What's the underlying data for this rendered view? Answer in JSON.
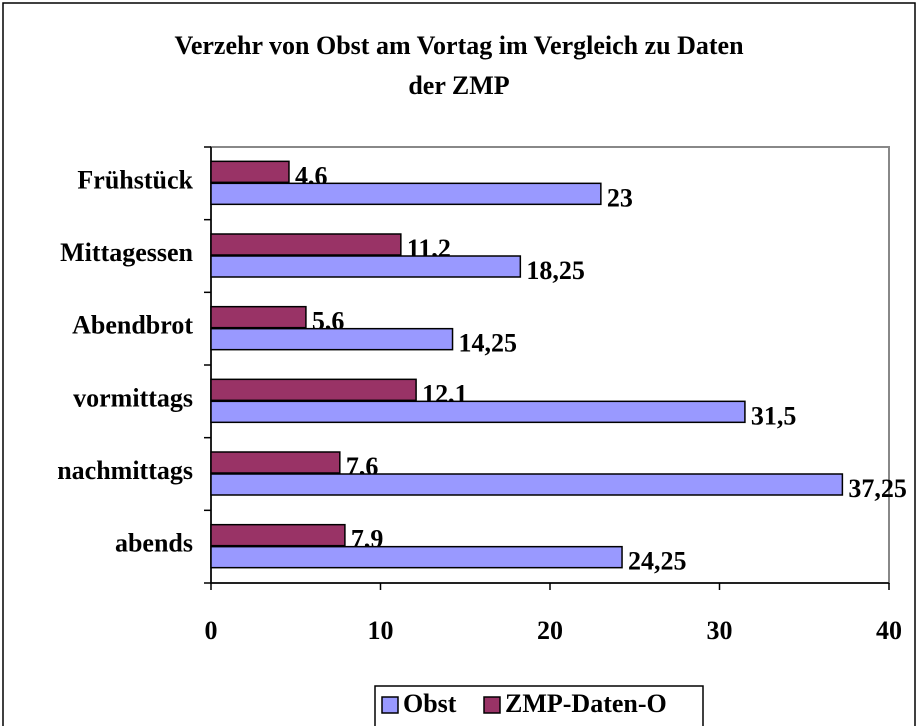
{
  "chart_data": {
    "type": "bar",
    "orientation": "horizontal",
    "title": "Verzehr von Obst am Vortag im Vergleich zu Daten der ZMP",
    "categories": [
      "Frühstück",
      "Mittagessen",
      "Abendbrot",
      "vormittags",
      "nachmittags",
      "abends"
    ],
    "series": [
      {
        "name": "Obst",
        "color": "#9999ff",
        "values": [
          23,
          18.25,
          14.25,
          31.5,
          37.25,
          24.25
        ],
        "value_labels": [
          "23",
          "18,25",
          "14,25",
          "31,5",
          "37,25",
          "24,25"
        ]
      },
      {
        "name": "ZMP-Daten-O",
        "color": "#993366",
        "values": [
          4.6,
          11.2,
          5.6,
          12.1,
          7.6,
          7.9
        ],
        "value_labels": [
          "4,6",
          "11,2",
          "5,6",
          "12,1",
          "7,6",
          "7,9"
        ]
      }
    ],
    "xlim": [
      0,
      40
    ],
    "xticks": [
      0,
      10,
      20,
      30,
      40
    ],
    "grid": false,
    "legend": "bottom"
  }
}
